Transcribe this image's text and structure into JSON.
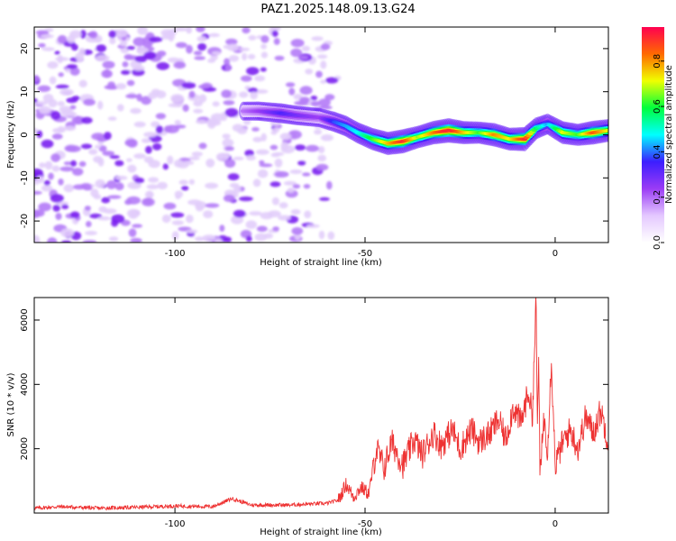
{
  "figure": {
    "title": "PAZ1.2025.148.09.13.G24"
  },
  "chart_data": [
    {
      "type": "heatmap",
      "xlabel": "Height of straight line (km)",
      "ylabel": "Frequency (Hz)",
      "xlim": [
        -137,
        14
      ],
      "ylim": [
        -25,
        25
      ],
      "x_ticks": [
        -100,
        -50,
        0
      ],
      "x_tick_labels": [
        "-100",
        "-50",
        "0"
      ],
      "y_ticks": [
        -20,
        -10,
        0,
        10,
        20
      ],
      "y_tick_labels": [
        "-20",
        "-10",
        "0",
        "10",
        "20"
      ],
      "noise_region_x": [
        -137,
        -57
      ],
      "ridge": {
        "x": [
          -82,
          -78,
          -72,
          -68,
          -62,
          -58,
          -55,
          -52,
          -48,
          -44,
          -40,
          -36,
          -32,
          -28,
          -24,
          -20,
          -16,
          -12,
          -8,
          -5,
          -2,
          2,
          6,
          10,
          14
        ],
        "y": [
          5.5,
          5.5,
          5,
          4.5,
          4,
          3,
          2,
          0.5,
          -1,
          -2,
          -1.5,
          -0.5,
          0.5,
          1,
          0.5,
          0.5,
          0,
          -1,
          -1,
          1.5,
          2.5,
          0.5,
          0,
          0.5,
          1
        ],
        "amplitude": [
          0.15,
          0.2,
          0.3,
          0.25,
          0.2,
          0.35,
          0.4,
          0.45,
          0.6,
          0.75,
          0.9,
          0.65,
          0.8,
          0.95,
          0.75,
          0.6,
          0.8,
          0.7,
          0.9,
          0.55,
          0.4,
          0.7,
          0.6,
          0.85,
          0.7
        ]
      },
      "colorbar": {
        "label": "Normalized spectral amplitude",
        "range": [
          0,
          0.95
        ],
        "ticks": [
          0,
          0.2,
          0.4,
          0.6,
          0.8
        ],
        "tick_labels": [
          "0.0",
          "0.2",
          "0.4",
          "0.6",
          "0.8"
        ],
        "colormap": [
          "#ffffff",
          "#e4c8ff",
          "#9b3cf5",
          "#3c1eff",
          "#00ffff",
          "#00ff3c",
          "#f0ff00",
          "#ff6a00",
          "#ff0050"
        ]
      }
    },
    {
      "type": "line",
      "xlabel": "Height of straight line (km)",
      "ylabel": "SNR (10 * v/v)",
      "xlim": [
        -137,
        14
      ],
      "ylim": [
        0,
        6700
      ],
      "x_ticks": [
        -100,
        -50,
        0
      ],
      "x_tick_labels": [
        "-100",
        "-50",
        "0"
      ],
      "y_ticks": [
        2000,
        4000,
        6000
      ],
      "y_tick_labels": [
        "2000",
        "4000",
        "6000"
      ],
      "color": "#ee3333",
      "series": [
        {
          "x": [
            -137,
            -130,
            -120,
            -110,
            -100,
            -90,
            -85,
            -80,
            -75,
            -70,
            -65,
            -60,
            -57,
            -55,
            -53,
            -51,
            -49,
            -47,
            -45,
            -43,
            -40,
            -37,
            -35,
            -32,
            -30,
            -27,
            -25,
            -22,
            -20,
            -17,
            -15,
            -13,
            -11,
            -9,
            -7,
            -6,
            -5,
            -4.7,
            -4.3,
            -4,
            -3,
            -2,
            -1,
            0,
            2,
            4,
            6,
            8,
            10,
            12,
            14
          ],
          "y": [
            150,
            200,
            150,
            180,
            220,
            200,
            450,
            250,
            250,
            250,
            280,
            300,
            400,
            900,
            500,
            800,
            600,
            2000,
            1400,
            2200,
            1500,
            2300,
            1800,
            2500,
            2100,
            2600,
            2000,
            2600,
            2200,
            2500,
            2900,
            2300,
            3300,
            2800,
            3800,
            3000,
            6700,
            2500,
            5000,
            1000,
            3000,
            2000,
            4800,
            1500,
            2200,
            2600,
            2000,
            3000,
            2500,
            3200,
            2200
          ]
        }
      ]
    }
  ]
}
